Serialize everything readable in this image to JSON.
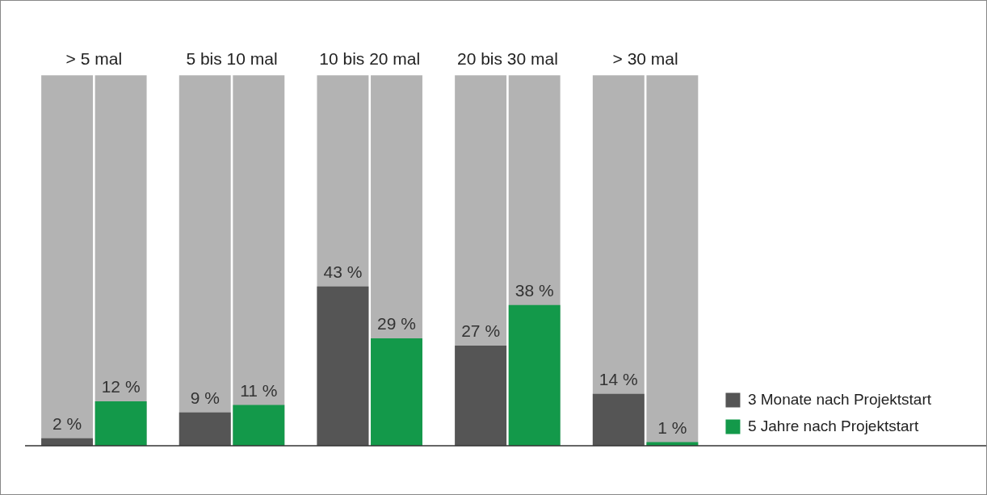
{
  "chart_data": {
    "type": "bar",
    "categories": [
      "> 5 mal",
      "5 bis 10 mal",
      "10 bis 20 mal",
      "20 bis 30 mal",
      "> 30 mal"
    ],
    "series": [
      {
        "name": "3 Monate nach Projektstart",
        "color": "#555555",
        "values": [
          2,
          9,
          43,
          27,
          14
        ],
        "value_labels": [
          "2 %",
          "9 %",
          "43 %",
          "27 %",
          "14 %"
        ]
      },
      {
        "name": "5 Jahre nach Projektstart",
        "color": "#13994a",
        "values": [
          12,
          11,
          29,
          38,
          1
        ],
        "value_labels": [
          "12 %",
          "11 %",
          "29 %",
          "38 %",
          "1 %"
        ]
      }
    ],
    "ylim": [
      0,
      100
    ],
    "tick_labels": "x",
    "grid": false,
    "legend": "right"
  }
}
